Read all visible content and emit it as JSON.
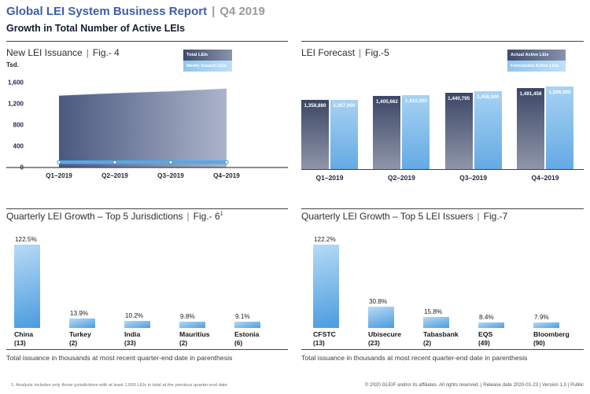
{
  "header": {
    "title": "Global LEI System Business Report",
    "pipe": "|",
    "period": "Q4 2019",
    "subtitle": "Growth in Total Number of Active LEIs"
  },
  "colors": {
    "accent_blue": "#3d5fa8",
    "dark_series_top": "#3c4766",
    "dark_series_bottom": "#9096a9",
    "light_series_top": "#a6d2f3",
    "light_series_bottom": "#65aae4",
    "bottom_bar_light": "#b7daf5",
    "bottom_bar_deep": "#4a9ce0",
    "issuance_line_blue": "#58a8e8"
  },
  "chart_data": [
    {
      "id": "fig4",
      "type": "area",
      "title": "New LEI Issuance",
      "fig": "Fig.- 4",
      "unit_label": "Tsd.",
      "categories": [
        "Q1–2019",
        "Q2–2019",
        "Q3–2019",
        "Q4–2019"
      ],
      "series": [
        {
          "name": "Total LEIs",
          "values": [
            1359,
            1406,
            1441,
            1491
          ]
        },
        {
          "name": "Newly Issued LEIs",
          "values": [
            100,
            100,
            100,
            100
          ]
        }
      ],
      "ylim": [
        0,
        1600
      ],
      "yticks": [
        1600,
        1200,
        800,
        400,
        0
      ],
      "grid": false,
      "legend_position": "top-right"
    },
    {
      "id": "fig5",
      "type": "bar",
      "title": "LEI Forecast",
      "fig": "Fig.-5",
      "categories": [
        "Q1–2019",
        "Q2–2019",
        "Q3–2019",
        "Q4–2019"
      ],
      "series": [
        {
          "name": "Actual Active LEIs",
          "values": [
            1358880,
            1405662,
            1440795,
            1491458
          ]
        },
        {
          "name": "Forecasted Active LEIs",
          "values": [
            1357000,
            1410000,
            1458000,
            1506000
          ]
        }
      ],
      "value_labels": true,
      "legend_position": "top-right"
    },
    {
      "id": "fig6",
      "type": "bar",
      "title": "Quarterly LEI Growth – Top 5 Jurisdictions",
      "fig": "Fig.- 6",
      "sup": "1",
      "categories": [
        "China",
        "Turkey",
        "India",
        "Mauritius",
        "Estonia"
      ],
      "counts": [
        13,
        2,
        33,
        2,
        6
      ],
      "values": [
        122.5,
        13.9,
        10.2,
        9.8,
        9.1
      ],
      "unit": "%",
      "note": "Total issuance in thousands at most recent quarter-end date in parenthesis"
    },
    {
      "id": "fig7",
      "type": "bar",
      "title": "Quarterly LEI Growth – Top 5 LEI Issuers",
      "fig": "Fig.-7",
      "categories": [
        "CFSTC",
        "Ubisecure",
        "Tabasbank",
        "EQS",
        "Bloomberg"
      ],
      "counts": [
        13,
        23,
        2,
        49,
        90
      ],
      "values": [
        122.2,
        30.8,
        15.8,
        8.4,
        7.9
      ],
      "unit": "%",
      "note": "Total issuance in thousands at most recent quarter-end date in parenthesis"
    }
  ],
  "footer": {
    "footnote": "1. Analysis includes only those jurisdictions with at least 1,000 LEIs in total at the previous quarter-end date",
    "copyright": "© 2020 GLEIF and/or its affiliates. All rights reserved.  |  Release date 2020-01-23  |  Version 1.0  |  Public"
  }
}
